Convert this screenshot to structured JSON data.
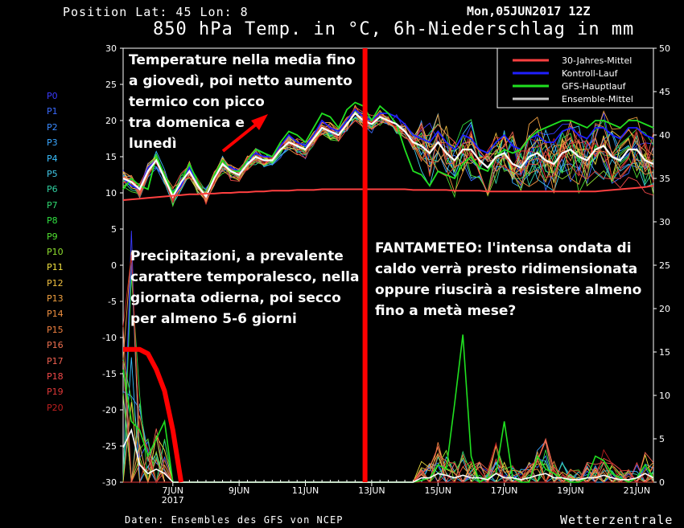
{
  "header": {
    "left": "Position  Lat: 45 Lon: 8",
    "right": "Mon,05JUN2017 12Z",
    "title": "850 hPa Temp. in °C, 6h-Niederschlag in mm"
  },
  "footer": {
    "left": "Daten: Ensembles des GFS von NCEP",
    "right": "Wetterzentrale"
  },
  "annotations": [
    {
      "lines": [
        "Temperature nella media fino",
        "a giovedì, poi netto aumento",
        "termico con picco",
        "tra domenica e",
        "lunedì"
      ]
    },
    {
      "lines": [
        "Precipitazioni, a prevalente",
        "carattere temporalesco, nella",
        "giornata odierna, poi secco",
        "per almeno 5-6 giorni"
      ]
    },
    {
      "lines": [
        "FANTAMETEO: l'intensa ondata di",
        "caldo verrà presto ridimensionata",
        "oppure riuscirà a resistere almeno",
        "fino a metà mese?"
      ]
    }
  ],
  "member_labels": [
    "P0",
    "P1",
    "P2",
    "P3",
    "P4",
    "P5",
    "P6",
    "P7",
    "P8",
    "P9",
    "P10",
    "P11",
    "P12",
    "P13",
    "P14",
    "P15",
    "P16",
    "P17",
    "P18",
    "P19",
    "P20"
  ],
  "member_colors": [
    "#3a3aff",
    "#3a6aff",
    "#3a8aff",
    "#3aa6ff",
    "#3ac0ff",
    "#40c8e8",
    "#30d0a0",
    "#30d870",
    "#30e040",
    "#50e030",
    "#90e030",
    "#f0e040",
    "#f0c040",
    "#f0a040",
    "#f09040",
    "#f08040",
    "#f07050",
    "#f06050",
    "#f04848",
    "#e03838",
    "#c02020"
  ],
  "colors": {
    "climate": "#ff4040",
    "control": "#2020ff",
    "gfs": "#20e020",
    "ensemble_mean": "#ffffff",
    "highlight": "#ff0000"
  },
  "chart_data": {
    "type": "line",
    "title": "850 hPa Temp. in °C, 6h-Niederschlag in mm",
    "left_axis": {
      "range": [
        -30,
        30
      ],
      "ticks": [
        -30,
        -25,
        -20,
        -15,
        -10,
        -5,
        0,
        5,
        10,
        15,
        20,
        25,
        30
      ]
    },
    "right_axis": {
      "range": [
        0,
        50
      ],
      "ticks": [
        0,
        5,
        10,
        15,
        20,
        25,
        30,
        35,
        40,
        45,
        50
      ]
    },
    "x_axis": {
      "start": "05JUN2017 12Z",
      "end": "21JUN2017 06Z",
      "step_hours": 6,
      "tick_labels": [
        {
          "label": "7JUN",
          "sub": "2017",
          "date": "07JUN"
        },
        {
          "label": "9JUN",
          "date": "09JUN"
        },
        {
          "label": "11JUN",
          "date": "11JUN"
        },
        {
          "label": "13JUN",
          "date": "13JUN"
        },
        {
          "label": "15JUN",
          "date": "15JUN"
        },
        {
          "label": "17JUN",
          "date": "17JUN"
        },
        {
          "label": "19JUN",
          "date": "19JUN"
        },
        {
          "label": "21JUN",
          "date": "21JUN"
        }
      ]
    },
    "legend": {
      "position": "top-right",
      "entries": [
        {
          "name": "30-Jahres-Mittel",
          "color": "#ff4040"
        },
        {
          "name": "Kontroll-Lauf",
          "color": "#2020ff"
        },
        {
          "name": "GFS-Hauptlauf",
          "color": "#20e020"
        },
        {
          "name": "Ensemble-Mittel",
          "color": "#c8c8c8"
        }
      ]
    },
    "series_temperature": {
      "Ensemble-Mittel": [
        12,
        11.5,
        10.5,
        13,
        14.5,
        12,
        9.5,
        11.5,
        13,
        11,
        9.5,
        12,
        14,
        13,
        12.5,
        14,
        15,
        14.5,
        14.5,
        16,
        17,
        16.5,
        16,
        17.5,
        19,
        18.5,
        18,
        19.5,
        21,
        20,
        19.5,
        20.5,
        20,
        19.5,
        18.5,
        17,
        16.5,
        15.5,
        17,
        15.5,
        14.5,
        16,
        16,
        14.5,
        13.5,
        15,
        15.5,
        14,
        13.5,
        15,
        15.5,
        14.5,
        14,
        15.5,
        16,
        15,
        14.5,
        16,
        16.5,
        15,
        14.5,
        16,
        16,
        14.5,
        14
      ],
      "GFS-Hauptlauf": [
        10.5,
        12,
        11,
        10.5,
        15,
        12.5,
        10,
        11.5,
        14,
        11.5,
        9.5,
        12.5,
        14.5,
        13,
        13,
        14.5,
        16,
        15.5,
        15,
        17,
        18.5,
        18,
        17,
        19,
        21,
        20.5,
        19,
        21.5,
        22.5,
        22,
        20,
        22,
        21,
        19.5,
        16,
        13,
        12.5,
        11,
        13,
        12.5,
        12,
        14,
        15,
        13.5,
        13,
        15,
        16,
        15.5,
        16,
        17.5,
        18.5,
        19,
        19.5,
        20,
        20,
        19.5,
        19,
        20,
        20,
        19.5,
        19,
        20,
        20,
        19.5,
        19
      ],
      "Kontroll-Lauf": [
        12,
        11,
        10.5,
        13.5,
        14.5,
        12,
        9.5,
        11,
        13.5,
        11,
        9.5,
        12,
        14,
        13.5,
        13,
        14.5,
        15.5,
        15,
        15,
        16.5,
        18,
        17,
        16.5,
        18,
        20,
        19,
        18.5,
        20,
        21.5,
        20.5,
        20,
        21,
        21,
        20.5,
        19.5,
        18,
        17.5,
        17,
        18.5,
        17,
        16,
        18,
        17.5,
        16,
        15.5,
        17,
        18,
        16.5,
        16,
        17.5,
        18,
        17,
        17,
        18.5,
        19,
        18,
        17.5,
        19,
        19,
        18,
        17.5,
        19,
        19,
        18,
        17.5
      ],
      "30-Jahres-Mittel": [
        9,
        9.1,
        9.2,
        9.3,
        9.4,
        9.5,
        9.6,
        9.7,
        9.8,
        9.8,
        9.9,
        9.9,
        10,
        10,
        10.1,
        10.1,
        10.2,
        10.2,
        10.3,
        10.3,
        10.3,
        10.4,
        10.4,
        10.4,
        10.5,
        10.5,
        10.5,
        10.5,
        10.5,
        10.5,
        10.5,
        10.5,
        10.5,
        10.5,
        10.5,
        10.4,
        10.4,
        10.4,
        10.4,
        10.4,
        10.3,
        10.3,
        10.3,
        10.3,
        10.2,
        10.2,
        10.2,
        10.2,
        10.2,
        10.2,
        10.2,
        10.2,
        10.2,
        10.2,
        10.2,
        10.2,
        10.2,
        10.2,
        10.3,
        10.4,
        10.5,
        10.6,
        10.7,
        10.8,
        11
      ]
    },
    "series_precipitation": {
      "GFS-Hauptlauf": [
        13,
        7,
        6,
        3,
        5,
        7,
        0,
        0,
        0,
        0,
        0,
        0,
        0,
        0,
        0,
        0,
        0,
        0,
        0,
        0,
        0,
        0,
        0,
        0,
        0,
        0,
        0,
        0,
        0,
        0,
        0,
        0,
        0,
        0,
        0,
        0,
        0.2,
        0.5,
        2,
        1.5,
        9,
        17,
        3,
        0,
        0.5,
        1,
        7,
        0.5,
        0,
        0,
        3,
        1.5,
        1,
        0.5,
        0,
        0,
        0.5,
        3,
        2.5,
        1,
        0.5,
        0,
        0.5,
        2,
        0.5
      ],
      "Ensemble-Mittel": [
        4,
        6,
        2,
        1,
        1.5,
        1,
        0,
        0,
        0,
        0,
        0,
        0,
        0,
        0,
        0,
        0,
        0,
        0,
        0,
        0,
        0,
        0,
        0,
        0,
        0,
        0,
        0,
        0,
        0,
        0,
        0,
        0,
        0,
        0,
        0,
        0,
        0.5,
        0.5,
        1,
        0.8,
        0.5,
        0.8,
        0.5,
        0.5,
        0.3,
        1,
        0.5,
        0.5,
        0.3,
        0.5,
        0.8,
        1,
        0.5,
        0.5,
        0.3,
        0.3,
        0.5,
        0.5,
        0.8,
        0.5,
        0.3,
        0.3,
        0.5,
        1,
        0.5
      ]
    },
    "highlight_precipitation_trend": [
      15.3,
      15.3,
      15.3,
      14.8,
      13,
      10.5,
      6,
      0
    ],
    "highlight_divider_date": "12JUN 18Z"
  }
}
